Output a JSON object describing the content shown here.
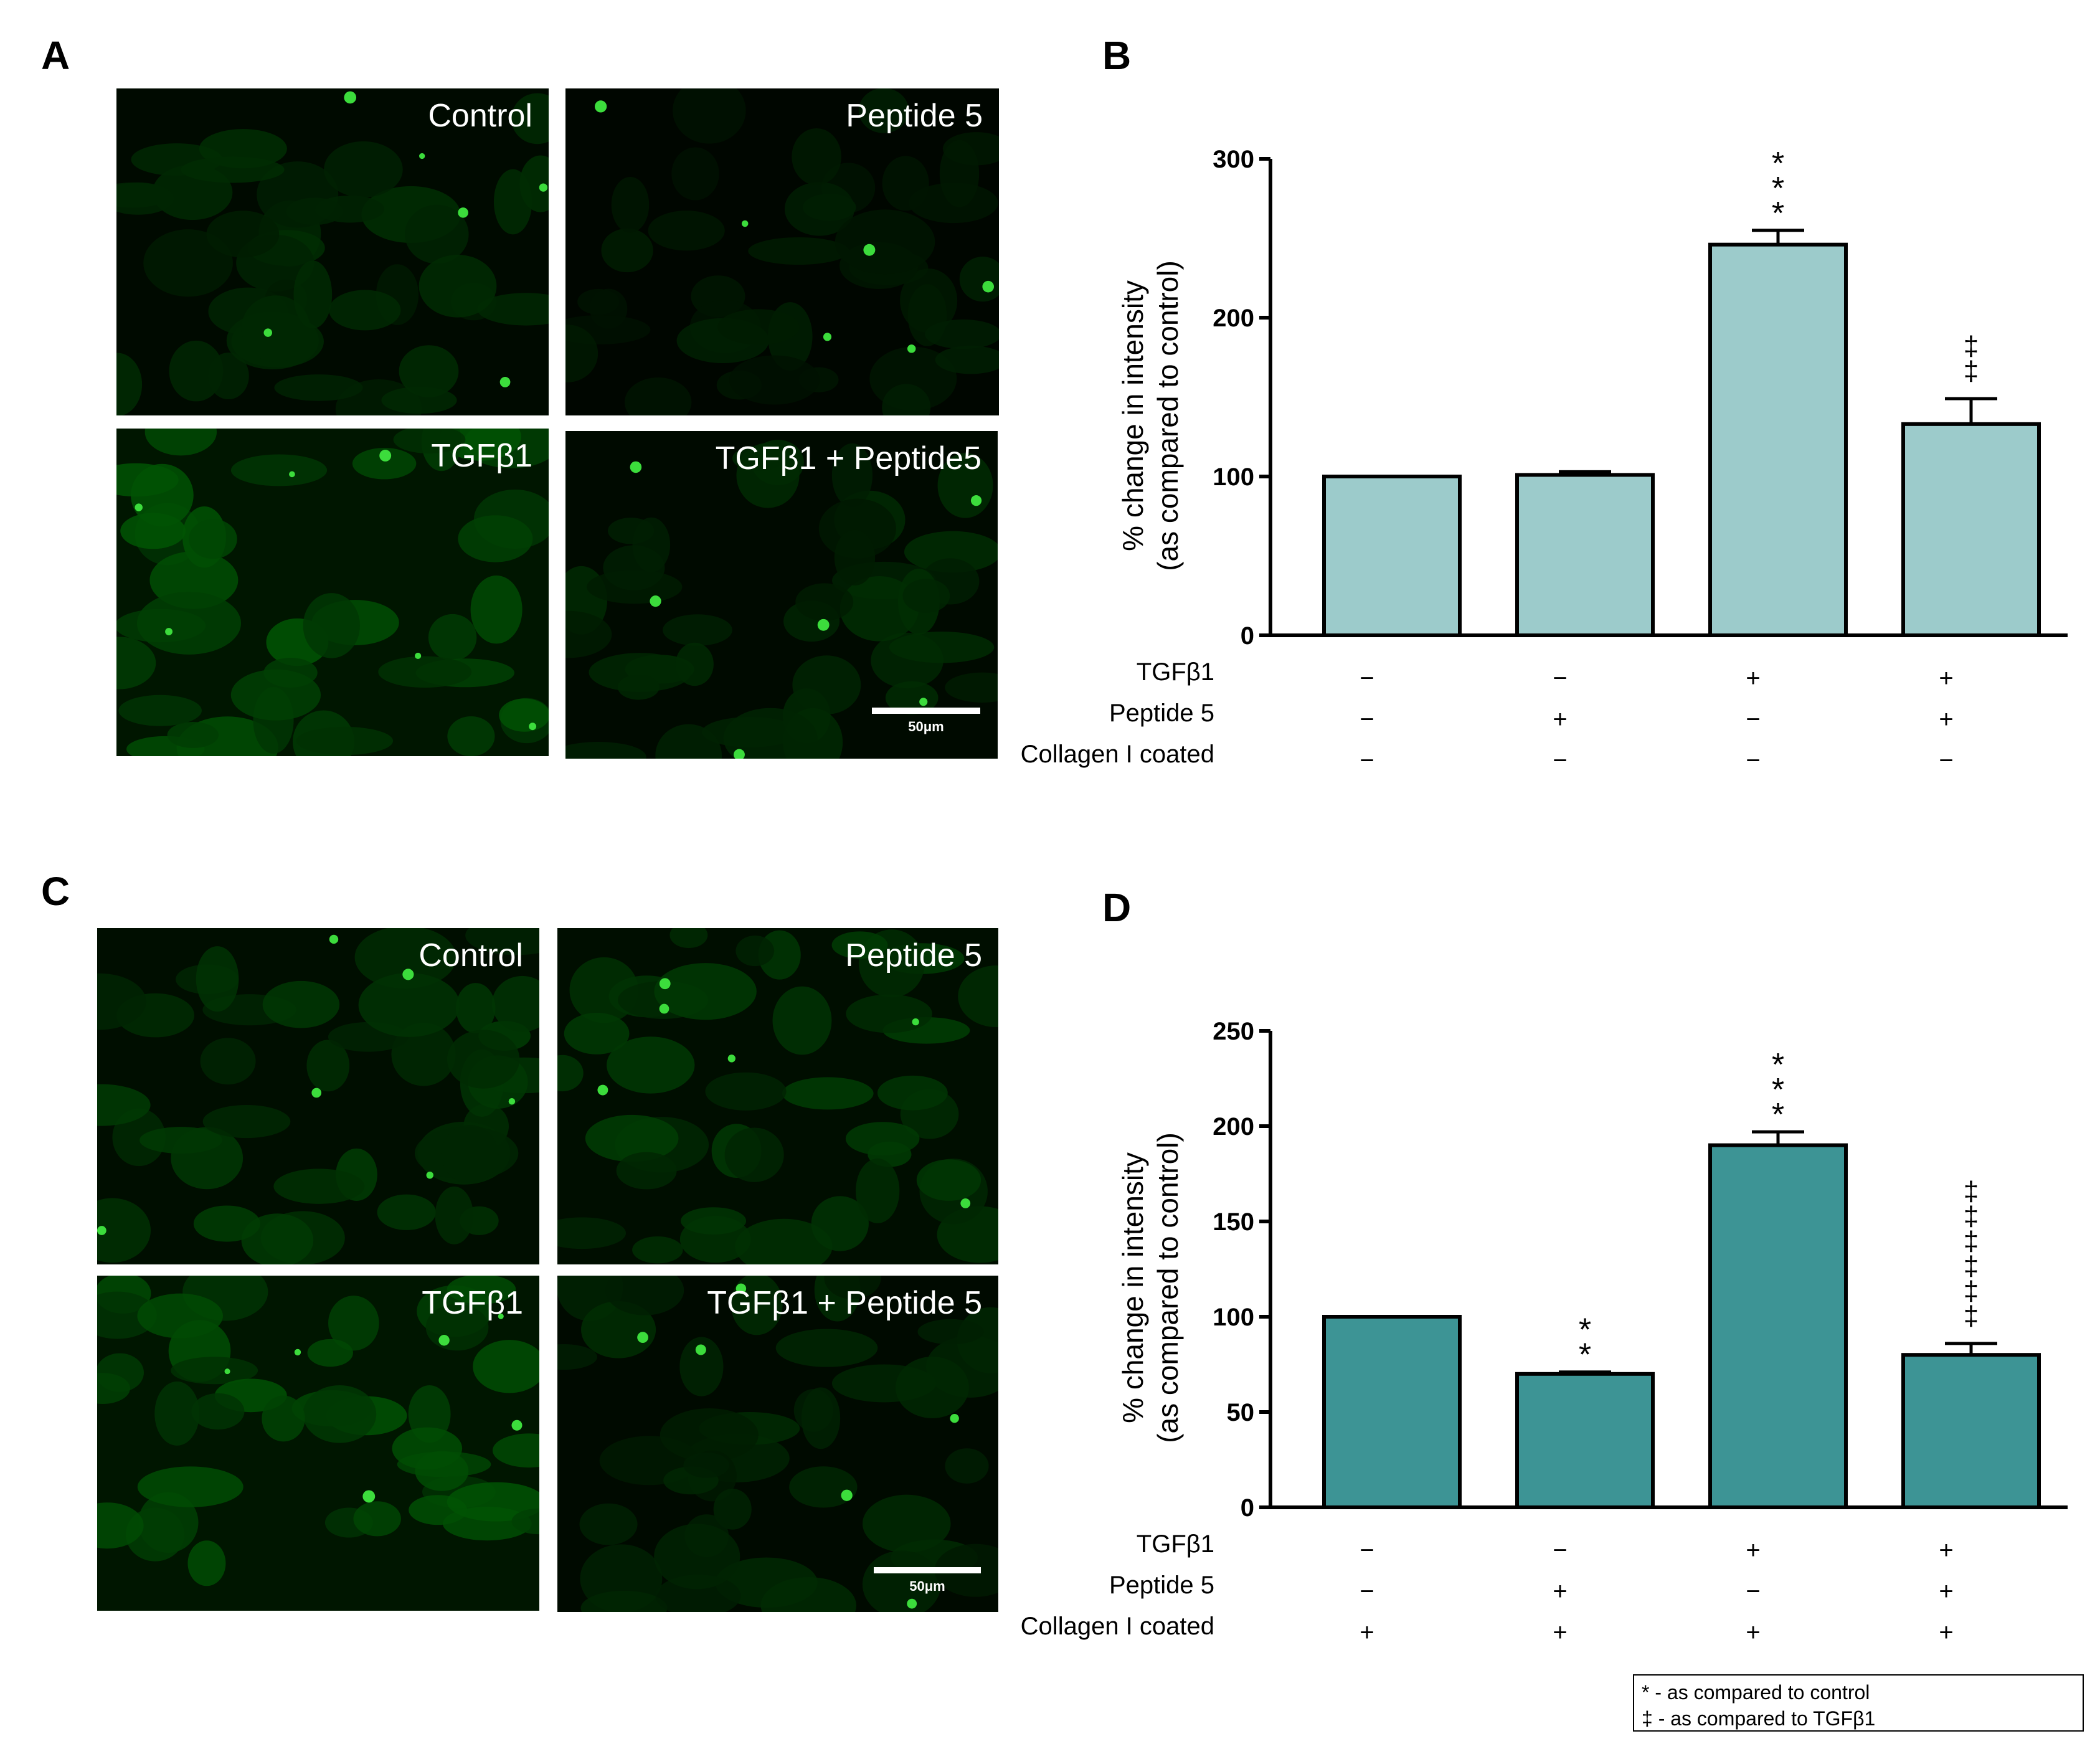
{
  "panel_letters": [
    "A",
    "B",
    "C",
    "D"
  ],
  "micrographs": [
    {
      "panel": "A",
      "images": [
        {
          "label": "Control",
          "intensity": "low"
        },
        {
          "label": "Peptide 5",
          "intensity": "very-low"
        },
        {
          "label": "TGFβ1",
          "intensity": "high"
        },
        {
          "label": "TGFβ1 + Peptide5",
          "intensity": "low"
        }
      ],
      "scale_bar": "50μm"
    },
    {
      "panel": "C",
      "images": [
        {
          "label": "Control",
          "intensity": "medium"
        },
        {
          "label": "Peptide 5",
          "intensity": "medium"
        },
        {
          "label": "TGFβ1",
          "intensity": "high"
        },
        {
          "label": "TGFβ1 + Peptide 5",
          "intensity": "low"
        }
      ],
      "scale_bar": "50μm"
    }
  ],
  "chart_data": [
    {
      "panel": "B",
      "type": "bar",
      "ylabel_line1": "% change in intensity",
      "ylabel_line2": "(as compared to control)",
      "ylim": [
        0,
        300
      ],
      "yticks": [
        0,
        100,
        200,
        300
      ],
      "bar_color": "#9ccbcb",
      "values": [
        100,
        101,
        246,
        133
      ],
      "errors": [
        0,
        2,
        9,
        16
      ],
      "annotations": [
        "",
        "",
        "*\n*\n*",
        "‡\n‡"
      ],
      "condition_rows": [
        {
          "label": "TGFβ1",
          "signs": [
            "−",
            "−",
            "+",
            "+"
          ]
        },
        {
          "label": "Peptide 5",
          "signs": [
            "−",
            "+",
            "−",
            "+"
          ]
        },
        {
          "label": "Collagen I coated",
          "signs": [
            "−",
            "−",
            "−",
            "−"
          ]
        }
      ]
    },
    {
      "panel": "D",
      "type": "bar",
      "ylabel_line1": "% change in intensity",
      "ylabel_line2": "(as compared to control)",
      "ylim": [
        0,
        250
      ],
      "yticks": [
        0,
        50,
        100,
        150,
        200,
        250
      ],
      "bar_color": "#3d9495",
      "values": [
        100,
        70,
        190,
        80
      ],
      "errors": [
        0,
        1,
        7,
        6
      ],
      "annotations": [
        "",
        "*\n*",
        "*\n*\n*",
        "‡\n‡\n‡\n‡\n‡\n‡"
      ],
      "condition_rows": [
        {
          "label": "TGFβ1",
          "signs": [
            "−",
            "−",
            "+",
            "+"
          ]
        },
        {
          "label": "Peptide 5",
          "signs": [
            "−",
            "+",
            "−",
            "+"
          ]
        },
        {
          "label": "Collagen I coated",
          "signs": [
            "+",
            "+",
            "+",
            "+"
          ]
        }
      ]
    }
  ],
  "legend": {
    "line1": "* - as compared to control",
    "line2": "‡ - as compared to TGFβ1"
  }
}
